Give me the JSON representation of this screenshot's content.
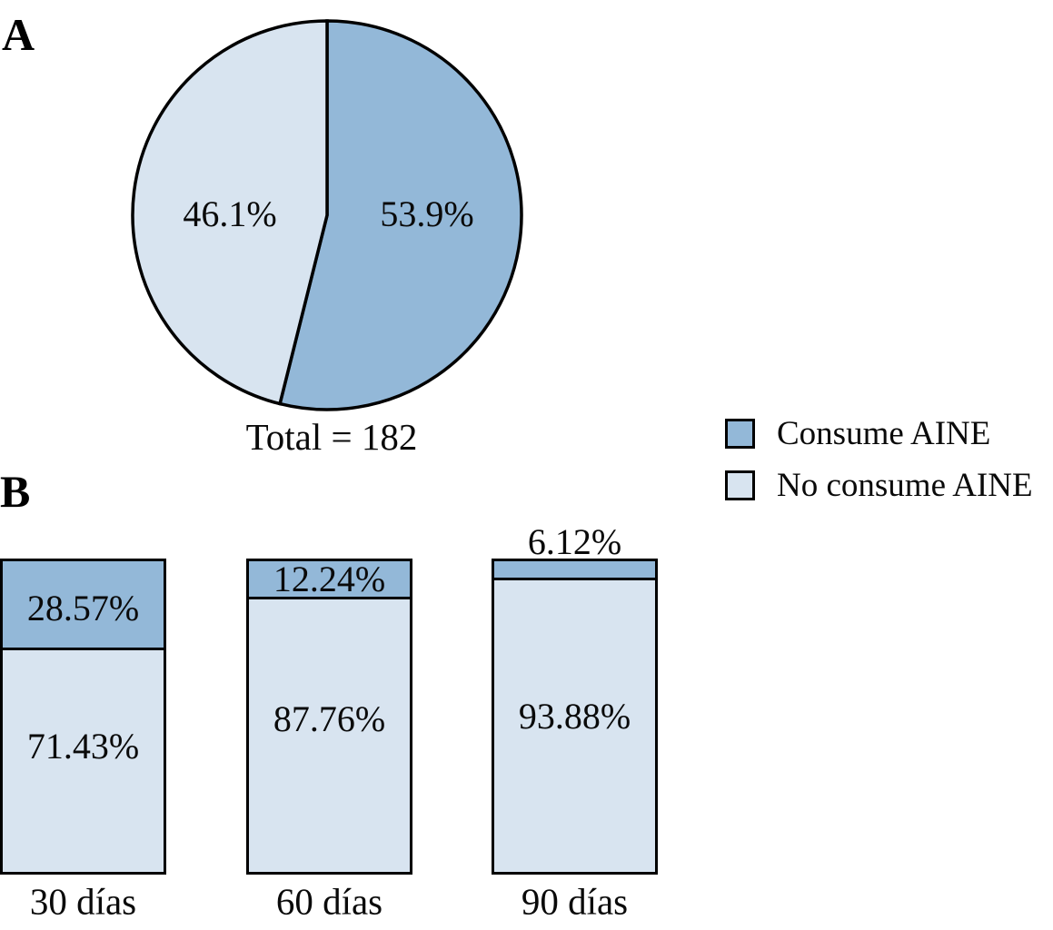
{
  "figure": {
    "panel_a_label": "A",
    "panel_b_label": "B",
    "background_color": "#ffffff",
    "text_color": "#0a0a0a",
    "outline_color": "#000000"
  },
  "legend": {
    "items": [
      {
        "label": "Consume AINE",
        "color": "#93B8D8"
      },
      {
        "label": "No consume AINE",
        "color": "#D8E4F0"
      }
    ]
  },
  "chart_data": [
    {
      "panel": "A",
      "type": "pie",
      "total": 182,
      "total_label": "Total = 182",
      "start_angle_deg": 0,
      "direction": "clockwise",
      "slices": [
        {
          "name": "Consume AINE",
          "value": 53.9,
          "label": "53.9%",
          "color": "#93B8D8"
        },
        {
          "name": "No consume AINE",
          "value": 46.1,
          "label": "46.1%",
          "color": "#D8E4F0"
        }
      ],
      "legend_position": "right"
    },
    {
      "panel": "B",
      "type": "bar",
      "stacked": true,
      "unit": "%",
      "ylim": [
        0,
        100
      ],
      "grid": false,
      "categories": [
        "30 días",
        "60 días",
        "90 días"
      ],
      "series": [
        {
          "name": "Consume AINE",
          "color": "#93B8D8",
          "values": [
            28.57,
            12.24,
            6.12
          ],
          "labels": [
            "28.57%",
            "12.24%",
            "6.12%"
          ]
        },
        {
          "name": "No consume AINE",
          "color": "#D8E4F0",
          "values": [
            71.43,
            87.76,
            93.88
          ],
          "labels": [
            "71.43%",
            "87.76%",
            "93.88%"
          ]
        }
      ]
    }
  ]
}
